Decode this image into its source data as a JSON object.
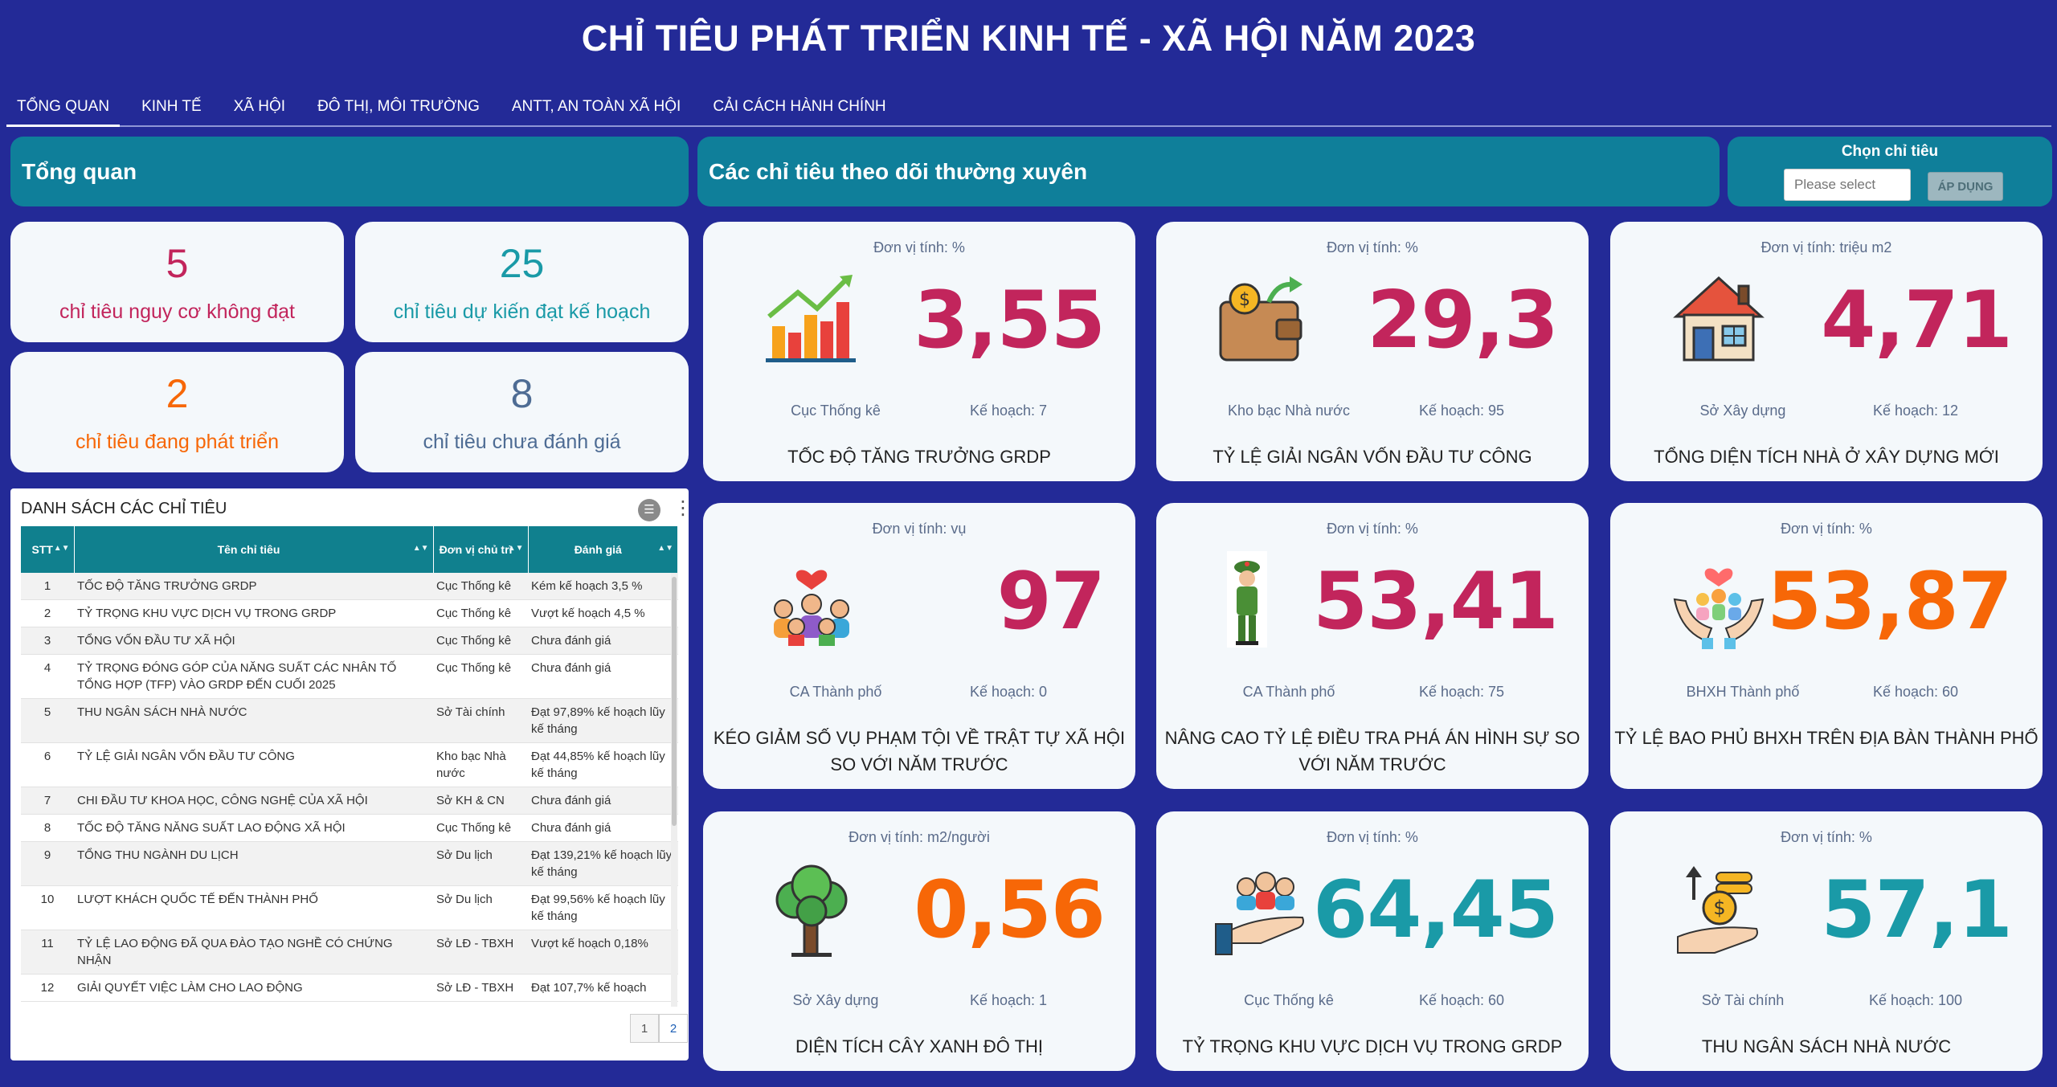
{
  "header": {
    "title": "CHỈ TIÊU PHÁT TRIỂN KINH TẾ - XÃ HỘI NĂM 2023"
  },
  "tabs": [
    {
      "label": "TỔNG QUAN"
    },
    {
      "label": "KINH TẾ"
    },
    {
      "label": "XÃ HỘI"
    },
    {
      "label": "ĐÔ THỊ, MÔI TRƯỜNG"
    },
    {
      "label": "ANTT, AN TOÀN XÃ HỘI"
    },
    {
      "label": "CẢI CÁCH HÀNH CHÍNH"
    }
  ],
  "overview": {
    "title": "Tổng quan"
  },
  "tracked": {
    "title": "Các chỉ tiêu theo dõi thường xuyên"
  },
  "picker": {
    "label": "Chọn chỉ tiêu",
    "placeholder": "Please select",
    "apply_label": "ÁP DỤNG"
  },
  "stats": [
    {
      "value": "5",
      "label": "chỉ tiêu nguy cơ không đạt",
      "color": "#c2255c"
    },
    {
      "value": "25",
      "label": "chỉ tiêu dự kiến đạt kế hoạch",
      "color": "#1a9aa7"
    },
    {
      "value": "2",
      "label": "chỉ tiêu đang phát triển",
      "color": "#f76707"
    },
    {
      "value": "8",
      "label": "chỉ tiêu chưa đánh giá",
      "color": "#4e6c94"
    }
  ],
  "list": {
    "title": "DANH SÁCH CÁC CHỈ TIÊU",
    "headers": {
      "stt": "STT",
      "name": "Tên chỉ tiêu",
      "unit": "Đơn vị chủ trì",
      "rating": "Đánh giá"
    },
    "rows": [
      {
        "stt": "1",
        "name": "TỐC ĐỘ TĂNG TRƯỞNG GRDP",
        "unit": "Cục Thống kê",
        "rating": "Kém kế hoạch 3,5 %"
      },
      {
        "stt": "2",
        "name": "TỶ TRỌNG KHU VỰC DỊCH VỤ TRONG GRDP",
        "unit": "Cục Thống kê",
        "rating": "Vượt kế hoạch 4,5 %"
      },
      {
        "stt": "3",
        "name": "TỔNG VỐN ĐẦU TƯ XÃ HỘI",
        "unit": "Cục Thống kê",
        "rating": "Chưa đánh giá"
      },
      {
        "stt": "4",
        "name": "TỶ TRỌNG ĐÓNG GÓP CỦA NĂNG SUẤT CÁC NHÂN TỐ TỔNG HỢP (TFP) VÀO GRDP ĐẾN CUỐI 2025",
        "unit": "Cục Thống kê",
        "rating": "Chưa đánh giá"
      },
      {
        "stt": "5",
        "name": "THU NGÂN SÁCH NHÀ NƯỚC",
        "unit": "Sở Tài chính",
        "rating": "Đạt 97,89% kế hoạch lũy kế tháng"
      },
      {
        "stt": "6",
        "name": "TỶ LỆ GIẢI NGÂN VỐN ĐẦU TƯ CÔNG",
        "unit": "Kho bạc Nhà nước",
        "rating": "Đạt 44,85% kế hoạch lũy kế tháng"
      },
      {
        "stt": "7",
        "name": "CHI ĐẦU TƯ KHOA HỌC, CÔNG NGHỆ CỦA XÃ HỘI",
        "unit": "Sở KH & CN",
        "rating": "Chưa đánh giá"
      },
      {
        "stt": "8",
        "name": "TỐC ĐỘ TĂNG NĂNG SUẤT LAO ĐỘNG XÃ HỘI",
        "unit": "Cục Thống kê",
        "rating": "Chưa đánh giá"
      },
      {
        "stt": "9",
        "name": "TỔNG THU NGÀNH DU LỊCH",
        "unit": "Sở Du lịch",
        "rating": "Đạt 139,21% kế hoạch lũy kế tháng"
      },
      {
        "stt": "10",
        "name": "LƯỢT KHÁCH QUỐC TẾ ĐẾN THÀNH PHỐ",
        "unit": "Sở Du lịch",
        "rating": "Đạt 99,56% kế hoạch lũy kế tháng"
      },
      {
        "stt": "11",
        "name": "TỶ LỆ LAO ĐỘNG ĐÃ QUA ĐÀO TẠO NGHỀ CÓ CHỨNG NHẬN",
        "unit": "Sở LĐ - TBXH",
        "rating": "Vượt kế hoạch 0,18%"
      },
      {
        "stt": "12",
        "name": "GIẢI QUYẾT VIỆC LÀM CHO LAO ĐỘNG",
        "unit": "Sở LĐ - TBXH",
        "rating": "Đạt 107,7% kế hoạch"
      }
    ],
    "pages": [
      "1",
      "2"
    ]
  },
  "cards": [
    {
      "unit": "Đơn vị tính: %",
      "value": "3,55",
      "source": "Cục Thống kê",
      "plan": "Kế hoạch: 7",
      "name": "TỐC ĐỘ TĂNG TRƯỞNG GRDP",
      "color": "#c2255c",
      "icon": "growth-chart-icon"
    },
    {
      "unit": "Đơn vị tính: %",
      "value": "29,3",
      "source": "Kho bạc Nhà nước",
      "plan": "Kế hoạch: 95",
      "name": "TỶ LỆ GIẢI NGÂN VỐN ĐẦU TƯ CÔNG",
      "color": "#c2255c",
      "icon": "wallet-icon"
    },
    {
      "unit": "Đơn vị tính: triệu m2",
      "value": "4,71",
      "source": "Sở Xây dựng",
      "plan": "Kế hoạch: 12",
      "name": "TỔNG DIỆN TÍCH NHÀ Ở XÂY DỰNG MỚI",
      "color": "#c2255c",
      "icon": "house-icon"
    },
    {
      "unit": "Đơn vị tính: vụ",
      "value": "97",
      "source": "CA Thành phố",
      "plan": "Kế hoạch: 0",
      "name": "KÉO GIẢM SỐ VỤ PHẠM TỘI VỀ TRẬT TỰ XÃ HỘI SO VỚI NĂM TRƯỚC",
      "color": "#c2255c",
      "icon": "community-icon"
    },
    {
      "unit": "Đơn vị tính: %",
      "value": "53,41",
      "source": "CA Thành phố",
      "plan": "Kế hoạch: 75",
      "name": "NÂNG CAO TỶ LỆ ĐIỀU TRA PHÁ ÁN HÌNH SỰ SO VỚI NĂM TRƯỚC",
      "color": "#c2255c",
      "icon": "police-icon"
    },
    {
      "unit": "Đơn vị tính: %",
      "value": "53,87",
      "source": "BHXH Thành phố",
      "plan": "Kế hoạch: 60",
      "name": "TỶ LỆ BAO PHỦ BHXH TRÊN ĐỊA BÀN THÀNH PHỐ",
      "color": "#f76707",
      "icon": "care-hands-icon"
    },
    {
      "unit": "Đơn vị tính: m2/người",
      "value": "0,56",
      "source": "Sở Xây dựng",
      "plan": "Kế hoạch: 1",
      "name": "DIỆN TÍCH CÂY XANH ĐÔ THỊ",
      "color": "#f76707",
      "icon": "tree-icon"
    },
    {
      "unit": "Đơn vị tính: %",
      "value": "64,45",
      "source": "Cục Thống kê",
      "plan": "Kế hoạch: 60",
      "name": "TỶ TRỌNG KHU VỰC DỊCH VỤ TRONG GRDP",
      "color": "#1a9aa7",
      "icon": "service-hand-icon"
    },
    {
      "unit": "Đơn vị tính: %",
      "value": "57,1",
      "source": "Sở Tài chính",
      "plan": "Kế hoạch: 100",
      "name": "THU NGÂN SÁCH NHÀ NƯỚC",
      "color": "#1a9aa7",
      "icon": "coins-hand-icon"
    }
  ]
}
